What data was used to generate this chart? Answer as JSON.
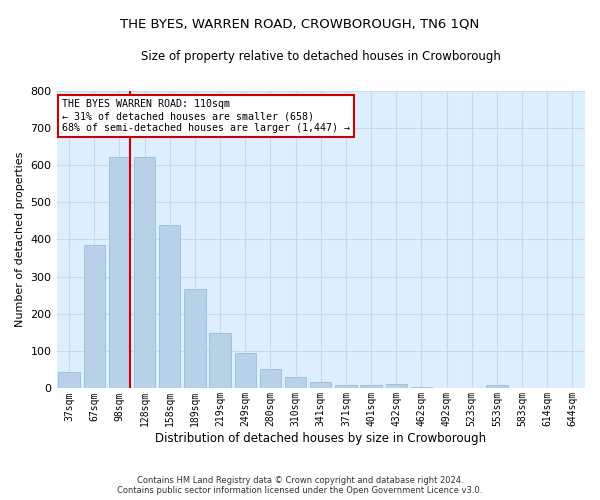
{
  "title": "THE BYES, WARREN ROAD, CROWBOROUGH, TN6 1QN",
  "subtitle": "Size of property relative to detached houses in Crowborough",
  "xlabel": "Distribution of detached houses by size in Crowborough",
  "ylabel": "Number of detached properties",
  "categories": [
    "37sqm",
    "67sqm",
    "98sqm",
    "128sqm",
    "158sqm",
    "189sqm",
    "219sqm",
    "249sqm",
    "280sqm",
    "310sqm",
    "341sqm",
    "371sqm",
    "401sqm",
    "432sqm",
    "462sqm",
    "492sqm",
    "523sqm",
    "553sqm",
    "583sqm",
    "614sqm",
    "644sqm"
  ],
  "values": [
    45,
    385,
    622,
    622,
    440,
    267,
    150,
    95,
    52,
    30,
    18,
    10,
    10,
    12,
    5,
    0,
    0,
    10,
    0,
    0,
    0
  ],
  "bar_color": "#b8d0e8",
  "bar_edge_color": "#8fb8d8",
  "grid_color": "#c8d8eb",
  "background_color": "#ddeeff",
  "fig_background": "#ffffff",
  "annotation_line1": "THE BYES WARREN ROAD: 110sqm",
  "annotation_line2": "← 31% of detached houses are smaller (658)",
  "annotation_line3": "68% of semi-detached houses are larger (1,447) →",
  "annotation_box_color": "#ffffff",
  "annotation_border_color": "#cc0000",
  "footer_line1": "Contains HM Land Registry data © Crown copyright and database right 2024.",
  "footer_line2": "Contains public sector information licensed under the Open Government Licence v3.0.",
  "ylim": [
    0,
    800
  ],
  "yticks": [
    0,
    100,
    200,
    300,
    400,
    500,
    600,
    700,
    800
  ]
}
